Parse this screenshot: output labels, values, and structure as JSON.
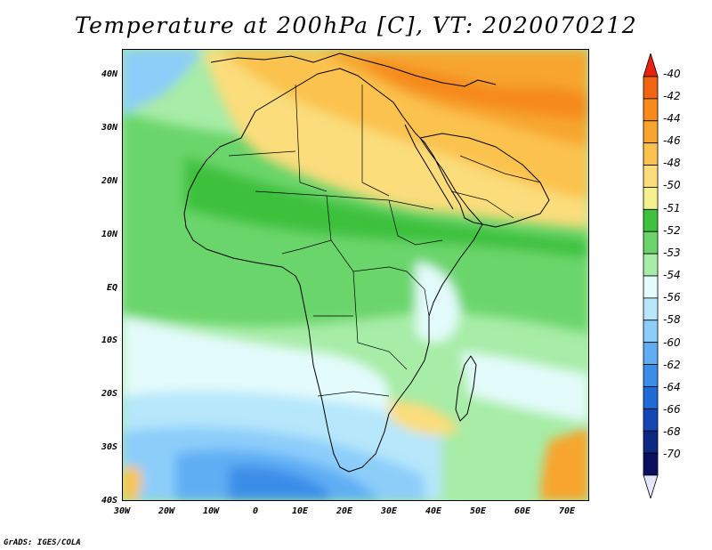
{
  "title": "Temperature at 200hPa [C], VT: 2020070212",
  "credit": "GrADS: IGES/COLA",
  "map": {
    "projection": "lat-lon",
    "lon_range": [
      -30,
      75
    ],
    "lat_range": [
      -40,
      45
    ],
    "lat_labels": [
      "40N",
      "30N",
      "20N",
      "10N",
      "EQ",
      "10S",
      "20S",
      "30S",
      "40S"
    ],
    "lon_labels": [
      "30W",
      "20W",
      "10W",
      "0",
      "10E",
      "20E",
      "30E",
      "40E",
      "50E",
      "60E",
      "70E"
    ]
  },
  "colorbar": {
    "labels": [
      "-40",
      "-42",
      "-44",
      "-46",
      "-48",
      "-50",
      "-51",
      "-52",
      "-53",
      "-54",
      "-56",
      "-58",
      "-60",
      "-62",
      "-64",
      "-66",
      "-68",
      "-70"
    ],
    "colors": [
      "#e8220f",
      "#f06412",
      "#f68a1a",
      "#f7a52f",
      "#fbc24d",
      "#fbdd7c",
      "#f5f28e",
      "#3ec13e",
      "#6bd56b",
      "#a7eca7",
      "#e3fbfb",
      "#b6e7fb",
      "#8ccdfa",
      "#5faef4",
      "#3b8ee8",
      "#1f6cd6",
      "#1447b3",
      "#0c2a82",
      "#0a1060",
      "#e6e6fb"
    ]
  },
  "palette": {
    "land_outline": "#000000",
    "hot": "#f68a1a",
    "warm": "#fbc24d",
    "mild": "#fbdd7c",
    "green": "#6bd56b",
    "lightgreen": "#a7eca7",
    "paleblue": "#e3fbfb",
    "blue": "#5faef4"
  }
}
